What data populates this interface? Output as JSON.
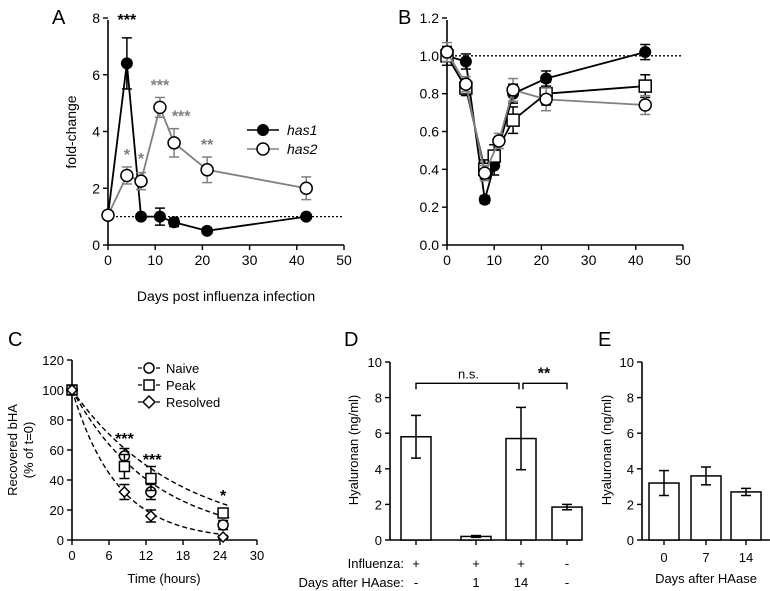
{
  "colors": {
    "black": "#000000",
    "gray": "#808080",
    "white": "#ffffff"
  },
  "chart_data": [
    {
      "panel": "A",
      "type": "line",
      "xlabel": "Days post influenza infection",
      "ylabel": "fold-change",
      "xlim": [
        0,
        50
      ],
      "ylim": [
        0,
        8
      ],
      "xticks": [
        "0",
        "10",
        "20",
        "30",
        "40",
        "50"
      ],
      "yticks": [
        "0",
        "2",
        "4",
        "6",
        "8"
      ],
      "baseline": 1,
      "legend": [
        "has1",
        "has2"
      ],
      "series": [
        {
          "name": "has1",
          "marker": "filled-circle",
          "color": "#000000",
          "x": [
            0,
            4,
            7,
            11,
            14,
            21,
            42
          ],
          "y": [
            1.05,
            6.4,
            1.0,
            1.0,
            0.8,
            0.5,
            1.0
          ],
          "err": [
            0.1,
            0.9,
            0.1,
            0.3,
            0.15,
            0.1,
            0.1
          ]
        },
        {
          "name": "has2",
          "marker": "open-circle",
          "color": "#808080",
          "x": [
            0,
            4,
            7,
            11,
            14,
            21,
            42
          ],
          "y": [
            1.05,
            2.45,
            2.25,
            4.85,
            3.6,
            2.65,
            2.0
          ],
          "err": [
            0.1,
            0.3,
            0.3,
            0.35,
            0.5,
            0.45,
            0.4
          ]
        }
      ],
      "annotations": [
        {
          "x": 4,
          "y": 7.75,
          "text": "***",
          "color": "#000000"
        },
        {
          "x": 4,
          "y": 3.0,
          "text": "*",
          "color": "#808080"
        },
        {
          "x": 7,
          "y": 2.85,
          "text": "*",
          "color": "#808080"
        },
        {
          "x": 11,
          "y": 5.45,
          "text": "***",
          "color": "#808080"
        },
        {
          "x": 15.5,
          "y": 4.35,
          "text": "***",
          "color": "#808080"
        },
        {
          "x": 21,
          "y": 3.35,
          "text": "**",
          "color": "#808080"
        }
      ]
    },
    {
      "panel": "B",
      "type": "line",
      "xlim": [
        0,
        50
      ],
      "ylim": [
        0.0,
        1.2
      ],
      "xticks": [
        "0",
        "10",
        "20",
        "30",
        "40",
        "50"
      ],
      "yticks": [
        "0.0",
        "0.2",
        "0.4",
        "0.6",
        "0.8",
        "1.0",
        "1.2"
      ],
      "baseline": 1.0,
      "series": [
        {
          "name": "filled-circle",
          "marker": "filled-circle",
          "color": "#000000",
          "x": [
            0,
            4,
            8,
            10,
            14,
            21,
            42
          ],
          "y": [
            1.0,
            0.97,
            0.24,
            0.42,
            0.8,
            0.88,
            1.02
          ],
          "err": [
            0.03,
            0.04,
            0.02,
            0.05,
            0.05,
            0.04,
            0.04
          ]
        },
        {
          "name": "open-square",
          "marker": "open-square",
          "color": "#000000",
          "x": [
            0,
            4,
            8,
            10,
            14,
            21,
            42
          ],
          "y": [
            1.0,
            0.83,
            0.4,
            0.47,
            0.66,
            0.8,
            0.84
          ],
          "err": [
            0.05,
            0.04,
            0.05,
            0.06,
            0.07,
            0.06,
            0.06
          ]
        },
        {
          "name": "open-circle",
          "marker": "open-circle",
          "color": "#808080",
          "x": [
            0,
            4,
            8,
            11,
            14,
            21,
            42
          ],
          "y": [
            1.02,
            0.85,
            0.38,
            0.55,
            0.82,
            0.77,
            0.74
          ],
          "err": [
            0.05,
            0.04,
            0.04,
            0.04,
            0.06,
            0.06,
            0.05
          ]
        }
      ]
    },
    {
      "panel": "C",
      "type": "scatter",
      "xlabel": "Time (hours)",
      "ylabel": "Recovered bHA",
      "ylabel2": "(% of t=0)",
      "xlim": [
        0,
        30
      ],
      "ylim": [
        0,
        120
      ],
      "xticks": [
        "0",
        "6",
        "12",
        "18",
        "24",
        "30"
      ],
      "yticks": [
        "0",
        "20",
        "40",
        "60",
        "80",
        "100",
        "120"
      ],
      "legend": [
        "Naive",
        "Peak",
        "Resolved"
      ],
      "series": [
        {
          "name": "Naive",
          "marker": "open-circle",
          "x": [
            0,
            8.5,
            12.8,
            24.5
          ],
          "y": [
            100,
            56,
            32,
            10
          ],
          "err": [
            3,
            5,
            5,
            3
          ],
          "fit": {
            "a": 100,
            "k": 0.075
          }
        },
        {
          "name": "Peak",
          "marker": "open-square",
          "x": [
            0,
            8.5,
            12.8,
            24.5
          ],
          "y": [
            100,
            49,
            41,
            18
          ],
          "err": [
            3,
            8,
            8,
            3
          ],
          "fit": {
            "a": 100,
            "k": 0.058
          }
        },
        {
          "name": "Resolved",
          "marker": "open-diamond",
          "x": [
            0,
            8.5,
            12.8,
            24.5
          ],
          "y": [
            100,
            32,
            16,
            2
          ],
          "err": [
            3,
            5,
            4,
            1
          ],
          "fit": {
            "a": 100,
            "k": 0.135
          }
        }
      ],
      "annotations": [
        {
          "x": 8.5,
          "y": 64,
          "text": "***"
        },
        {
          "x": 13,
          "y": 50,
          "text": "***"
        },
        {
          "x": 24.5,
          "y": 26,
          "text": "*"
        }
      ]
    },
    {
      "panel": "D",
      "type": "bar",
      "ylabel": "Hyaluronan (ng/ml)",
      "ylim": [
        0,
        10
      ],
      "yticks": [
        "0",
        "2",
        "4",
        "6",
        "8",
        "10"
      ],
      "values": [
        5.8,
        0.2,
        5.7,
        1.85
      ],
      "err": [
        1.2,
        0.05,
        1.75,
        0.15
      ],
      "row_labels": [
        "Influenza:",
        "Days after HAase:"
      ],
      "influenza": [
        "+",
        "+",
        "+",
        "-"
      ],
      "days_after_haase": [
        "-",
        "1",
        "14",
        "-"
      ],
      "brackets": [
        {
          "from": 0,
          "to": 2,
          "text": "n.s."
        },
        {
          "from": 2,
          "to": 3,
          "text": "**"
        }
      ]
    },
    {
      "panel": "E",
      "type": "bar",
      "ylabel": "Hyaluronan (ng/ml)",
      "xlabel": "Days after HAase",
      "ylim": [
        0,
        10
      ],
      "yticks": [
        "0",
        "2",
        "4",
        "6",
        "8",
        "10"
      ],
      "categories": [
        "0",
        "7",
        "14"
      ],
      "values": [
        3.2,
        3.6,
        2.7
      ],
      "err": [
        0.7,
        0.5,
        0.2
      ]
    }
  ]
}
